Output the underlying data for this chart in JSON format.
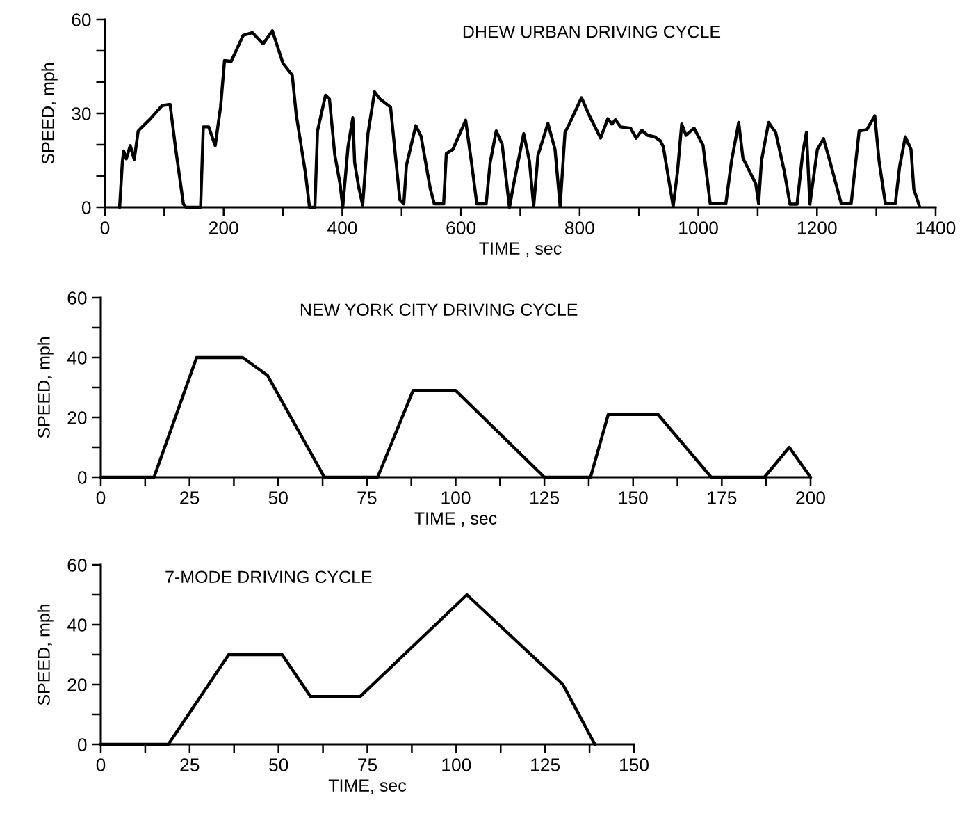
{
  "chart_data": [
    {
      "type": "line",
      "title": "DHEW URBAN DRIVING CYCLE",
      "xlabel": "TIME , sec",
      "ylabel": "SPEED, mph",
      "xlim": [
        0,
        1400
      ],
      "ylim": [
        0,
        60
      ],
      "xticks": [
        0,
        {
          "value": 100,
          "label": null
        },
        200,
        {
          "value": 300,
          "label": null
        },
        400,
        {
          "value": 500,
          "label": null
        },
        600,
        {
          "value": 700,
          "label": null
        },
        800,
        {
          "value": 900,
          "label": null
        },
        1000,
        {
          "value": 1100,
          "label": null
        },
        1200,
        {
          "value": 1300,
          "label": null
        },
        1400
      ],
      "yticks": [
        0,
        {
          "value": 10,
          "label": null
        },
        {
          "value": 20,
          "label": null
        },
        30,
        {
          "value": 40,
          "label": null
        },
        {
          "value": 50,
          "label": null
        },
        60
      ],
      "grid": false,
      "legend": false,
      "marker": "none",
      "line_style": "solid",
      "series": [
        {
          "color": "#000000",
          "x": [
            24.7,
            29.2,
            31.4,
            35.9,
            42.6,
            49.3,
            56,
            62.8,
            76.2,
            96.3,
            109.7,
            118.7,
            132.1,
            136.6,
            161.2,
            165.7,
            174.7,
            185.8,
            194.8,
            201.5,
            212.7,
            232.8,
            248.5,
            266.4,
            282.1,
            300,
            315.6,
            322.4,
            338,
            344.7,
            353.7,
            358.2,
            371.6,
            378.3,
            387.3,
            396.2,
            400.7,
            409.6,
            417.7,
            420.8,
            427.5,
            434.3,
            443.2,
            454.4,
            463.4,
            481.3,
            497,
            503.6,
            508.1,
            523.8,
            532.7,
            548.4,
            555.1,
            570.8,
            575.3,
            586.4,
            607.9,
            617.8,
            626.7,
            642.4,
            649.1,
            659.4,
            669.3,
            676,
            681.7,
            688.9,
            705.7,
            715.3,
            722.5,
            729.7,
            746.5,
            758.5,
            767.1,
            775.3,
            782.5,
            803.1,
            816.1,
            835.3,
            847.3,
            854.5,
            860.2,
            868.9,
            885.7,
            895.3,
            904.8,
            914.5,
            926.4,
            936.1,
            940.9,
            948.1,
            957.6,
            964.8,
            972,
            979.2,
            992.7,
            1008,
            1020,
            1046.4,
            1056,
            1068,
            1075.2,
            1096.8,
            1101.6,
            1106.4,
            1118.4,
            1130.4,
            1144.8,
            1154.4,
            1166.4,
            1176,
            1182.2,
            1188,
            1200.6,
            1211,
            1221.6,
            1240.8,
            1257.6,
            1271,
            1284,
            1297.4,
            1304.6,
            1315.2,
            1332,
            1339.2,
            1348.8,
            1358.4,
            1363.2,
            1372.8
          ],
          "values": [
            0,
            14.2,
            18,
            15.5,
            19.7,
            15.3,
            24.4,
            25.7,
            28.2,
            32.5,
            32.9,
            19.3,
            1.1,
            0,
            0,
            25.7,
            25.7,
            19.7,
            32,
            46.9,
            46.6,
            54.9,
            55.8,
            52.2,
            56.4,
            46,
            42.2,
            29.5,
            10.8,
            0,
            0,
            24.4,
            35.8,
            34.6,
            16.8,
            7.5,
            0,
            19.3,
            28.6,
            14.2,
            6.6,
            0.7,
            23.6,
            36.9,
            34.6,
            32,
            2.4,
            1.1,
            13.4,
            26.1,
            22.7,
            5.8,
            1.1,
            1.1,
            17.2,
            18.5,
            27.8,
            14.2,
            1.1,
            1.1,
            14.2,
            24.4,
            20.2,
            9.2,
            0,
            7.5,
            23.5,
            14.8,
            0.3,
            16.6,
            26.8,
            18.5,
            0.3,
            23.9,
            26.6,
            35,
            29.4,
            22.1,
            28.3,
            26.6,
            28,
            25.7,
            25.3,
            22.1,
            24.6,
            23,
            22.5,
            21.2,
            19.4,
            11.2,
            0.3,
            11.2,
            26.6,
            23,
            25.3,
            19.8,
            1.2,
            1.2,
            14.8,
            27.1,
            15.7,
            7.5,
            1.2,
            14.8,
            27.1,
            23.9,
            11.6,
            1,
            1,
            17.5,
            23.9,
            1,
            18.5,
            21.9,
            14.8,
            1.2,
            1.2,
            24.4,
            24.8,
            29.2,
            14.8,
            1.2,
            1.2,
            13,
            22.5,
            18.5,
            5.7,
            0.3
          ]
        }
      ]
    },
    {
      "type": "line",
      "title": "NEW YORK CITY DRIVING CYCLE",
      "xlabel": "TIME , sec",
      "ylabel": "SPEED, mph",
      "xlim": [
        0,
        200
      ],
      "ylim": [
        0,
        60
      ],
      "xticks": [
        0,
        {
          "value": 12.5,
          "label": null
        },
        25,
        {
          "value": 37.5,
          "label": null
        },
        50,
        {
          "value": 62.5,
          "label": null
        },
        75,
        {
          "value": 87.5,
          "label": null
        },
        100,
        {
          "value": 112.5,
          "label": null
        },
        125,
        {
          "value": 137.5,
          "label": null
        },
        150,
        {
          "value": 162.5,
          "label": null
        },
        175,
        {
          "value": 187.5,
          "label": null
        },
        200
      ],
      "yticks": [
        0,
        {
          "value": 10,
          "label": null
        },
        20,
        {
          "value": 30,
          "label": null
        },
        40,
        {
          "value": 50,
          "label": null
        },
        60
      ],
      "grid": false,
      "legend": false,
      "marker": "none",
      "line_style": "solid",
      "series": [
        {
          "color": "#000000",
          "x": [
            0,
            15,
            27,
            40,
            47,
            63,
            78,
            88,
            100,
            125,
            138,
            143,
            157,
            172,
            187,
            194,
            200
          ],
          "values": [
            0,
            0,
            40,
            40,
            34,
            0,
            0,
            29,
            29,
            0,
            0,
            21,
            21,
            0,
            0,
            10,
            0
          ]
        }
      ]
    },
    {
      "type": "line",
      "title": "7-MODE DRIVING CYCLE",
      "xlabel": "TIME, sec",
      "ylabel": "SPEED, mph",
      "xlim": [
        0,
        150
      ],
      "ylim": [
        0,
        60
      ],
      "xticks": [
        0,
        {
          "value": 12.5,
          "label": null
        },
        25,
        {
          "value": 37.5,
          "label": null
        },
        50,
        {
          "value": 62.5,
          "label": null
        },
        75,
        {
          "value": 87.5,
          "label": null
        },
        100,
        {
          "value": 112.5,
          "label": null
        },
        125,
        {
          "value": 137.5,
          "label": null
        },
        150
      ],
      "yticks": [
        0,
        {
          "value": 10,
          "label": null
        },
        20,
        {
          "value": 30,
          "label": null
        },
        40,
        {
          "value": 50,
          "label": null
        },
        60
      ],
      "grid": false,
      "legend": false,
      "marker": "none",
      "line_style": "solid",
      "series": [
        {
          "color": "#000000",
          "x": [
            0,
            19,
            36,
            51,
            59,
            73,
            103,
            130,
            139
          ],
          "values": [
            0,
            0,
            30,
            30,
            16,
            16,
            50,
            20,
            0
          ]
        }
      ]
    }
  ]
}
